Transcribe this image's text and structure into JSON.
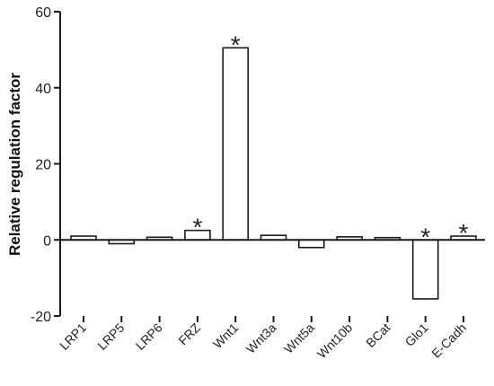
{
  "chart_data": {
    "type": "bar",
    "title": "",
    "xlabel": "",
    "ylabel": "Relative regulation factor",
    "ylim": [
      -20,
      60
    ],
    "yticks": [
      -20,
      0,
      20,
      40,
      60
    ],
    "categories": [
      "LRP1",
      "LRP5",
      "LRP6",
      "FRZ",
      "Wnt1",
      "Wnt3a",
      "Wnt5a",
      "Wnt10b",
      "BCat",
      "Glo1",
      "E-Cadh"
    ],
    "values": [
      1,
      -1,
      0.7,
      2.5,
      50.5,
      1.2,
      -2,
      0.8,
      0.6,
      -15.5,
      1
    ],
    "significant": [
      false,
      false,
      false,
      true,
      true,
      false,
      false,
      false,
      false,
      true,
      true
    ],
    "significance_marker": "*",
    "grid": false,
    "legend": "none",
    "colors": {
      "bar_fill": "#ffffff",
      "bar_stroke": "#1a1a1a",
      "axis": "#1a1a1a",
      "text": "#222222"
    }
  }
}
